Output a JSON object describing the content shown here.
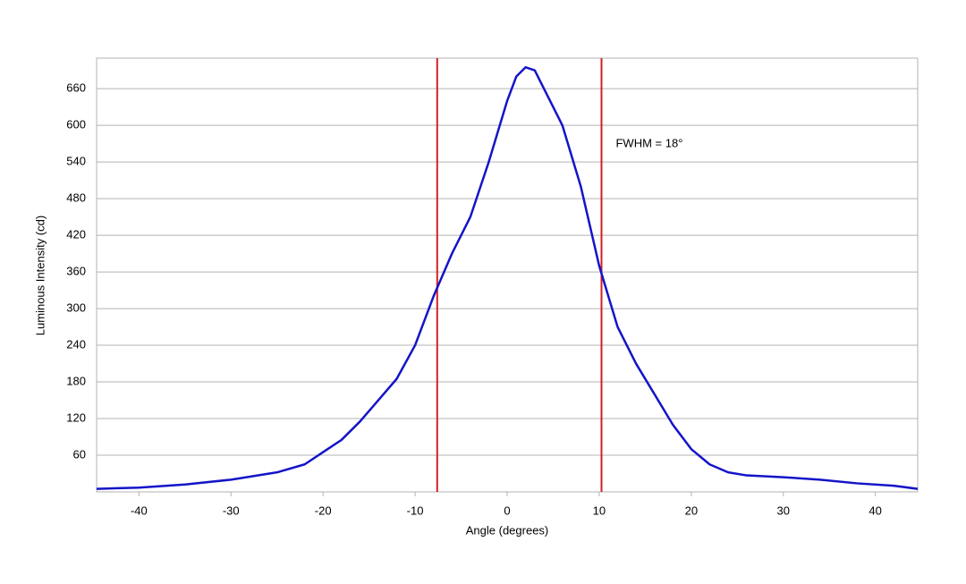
{
  "chart_data": {
    "type": "line",
    "xlabel": "Angle (degrees)",
    "ylabel": "Luminous Intensity (cd)",
    "annotation": "FWHM = 18°",
    "x": [
      -44.6,
      -40,
      -35,
      -30,
      -25,
      -22,
      -20,
      -18,
      -16,
      -14,
      -12,
      -10,
      -8,
      -6,
      -4,
      -2,
      0,
      1,
      2,
      3,
      4,
      6,
      8,
      10,
      12,
      14,
      16,
      18,
      20,
      22,
      24,
      26,
      30,
      34,
      38,
      42,
      44.6
    ],
    "series": [
      {
        "name": "Luminous Intensity",
        "color": "#1414c8",
        "values": [
          5,
          7,
          12,
          20,
          32,
          45,
          65,
          85,
          115,
          150,
          185,
          240,
          320,
          390,
          450,
          540,
          640,
          680,
          695,
          690,
          660,
          600,
          500,
          370,
          270,
          210,
          160,
          110,
          70,
          45,
          32,
          27,
          24,
          20,
          14,
          10,
          5
        ]
      }
    ],
    "vlines": [
      -7.6,
      10.25
    ],
    "vline_color": "#d42020",
    "xlim": [
      -44.6,
      44.6
    ],
    "ylim": [
      0,
      710
    ],
    "xticks": [
      -40,
      -30,
      -20,
      -10,
      0,
      10,
      20,
      30,
      40
    ],
    "yticks": [
      60,
      120,
      180,
      240,
      300,
      360,
      420,
      480,
      540,
      600,
      660
    ],
    "grid": true
  }
}
